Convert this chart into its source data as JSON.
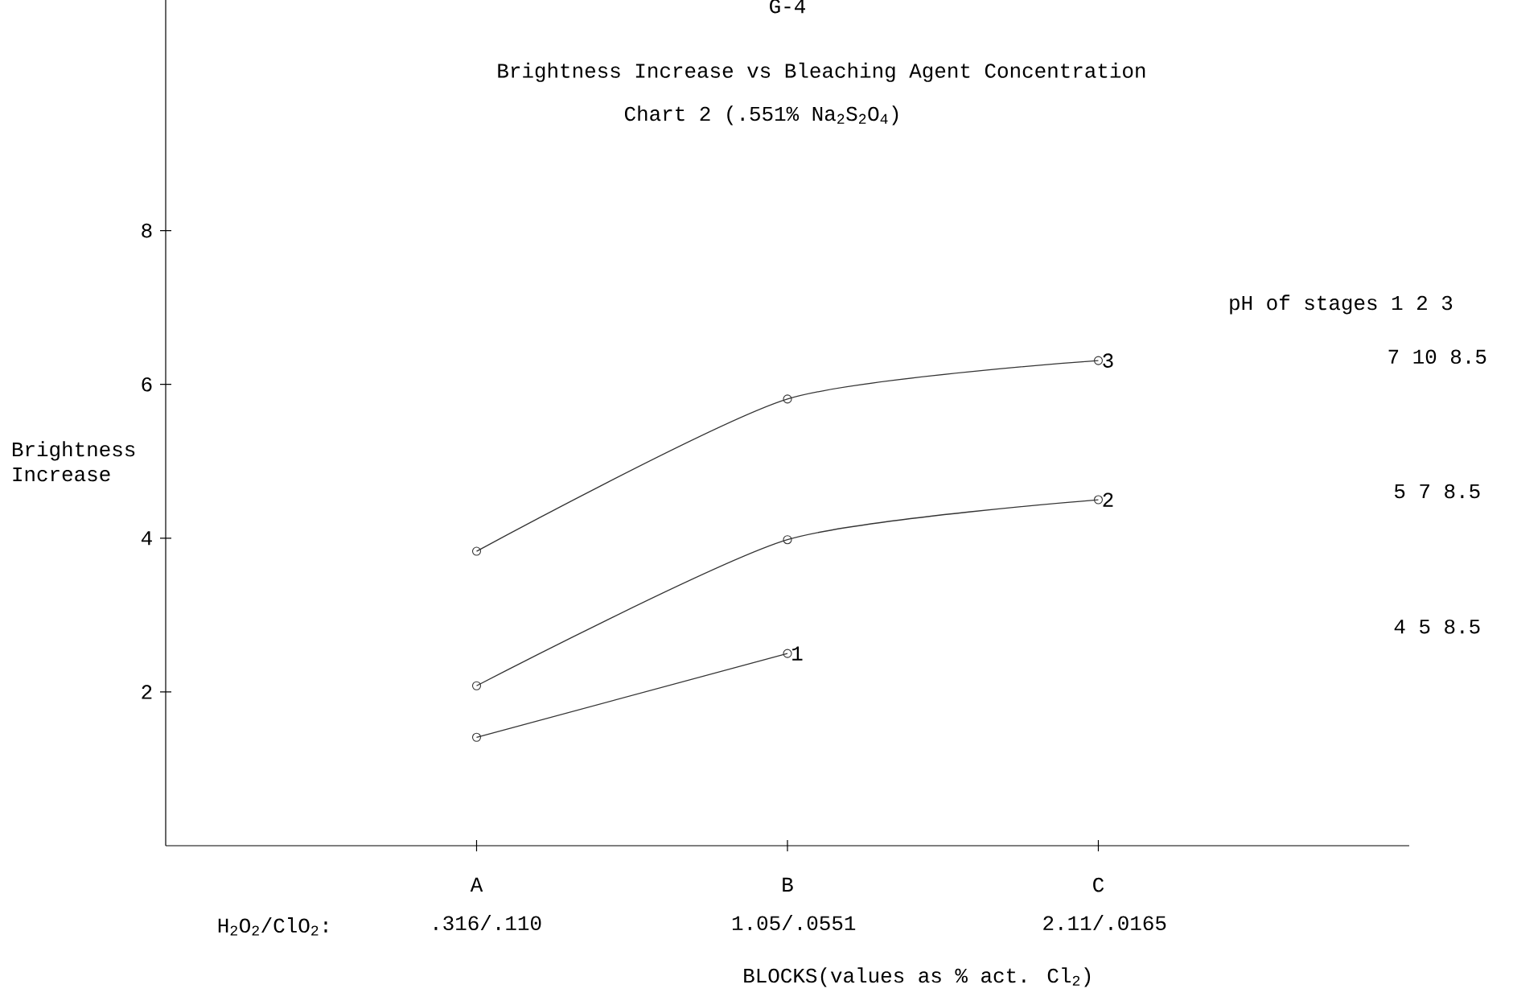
{
  "chart_data": {
    "type": "line",
    "title": "Brightness Increase vs Bleaching Agent Concentration",
    "subtitle": "Chart 2 (.551% Na$_{2}$S$_{2}$O$_{4}$)",
    "xlabel": "BLOCKS(values as % act. Cl$_{2}$)",
    "ylabel": "Brightness Increase",
    "categories": [
      "A",
      "B",
      "C"
    ],
    "ylim": [
      0,
      11
    ],
    "yticks": [
      2,
      4,
      6,
      8
    ],
    "marker": "circle",
    "line_style": "solid",
    "legend": false,
    "grid": false,
    "series": [
      {
        "name": "3",
        "color": "#333333",
        "values": [
          3.83,
          5.81,
          6.31
        ]
      },
      {
        "name": "2",
        "color": "#333333",
        "values": [
          2.08,
          3.98,
          4.5
        ]
      },
      {
        "name": "1",
        "color": "#333333",
        "values": [
          1.41,
          2.5,
          null
        ]
      }
    ],
    "annotations": [
      "G-4",
      "H$_{2}$O$_{2}$/ClO$_{2}$:",
      ".316/.110",
      "1.05/.0551",
      "2.11/.0165",
      "pH of stages 1 2 3",
      "7 10 8.5",
      "5 7 8.5",
      "4 5 8.5"
    ]
  }
}
